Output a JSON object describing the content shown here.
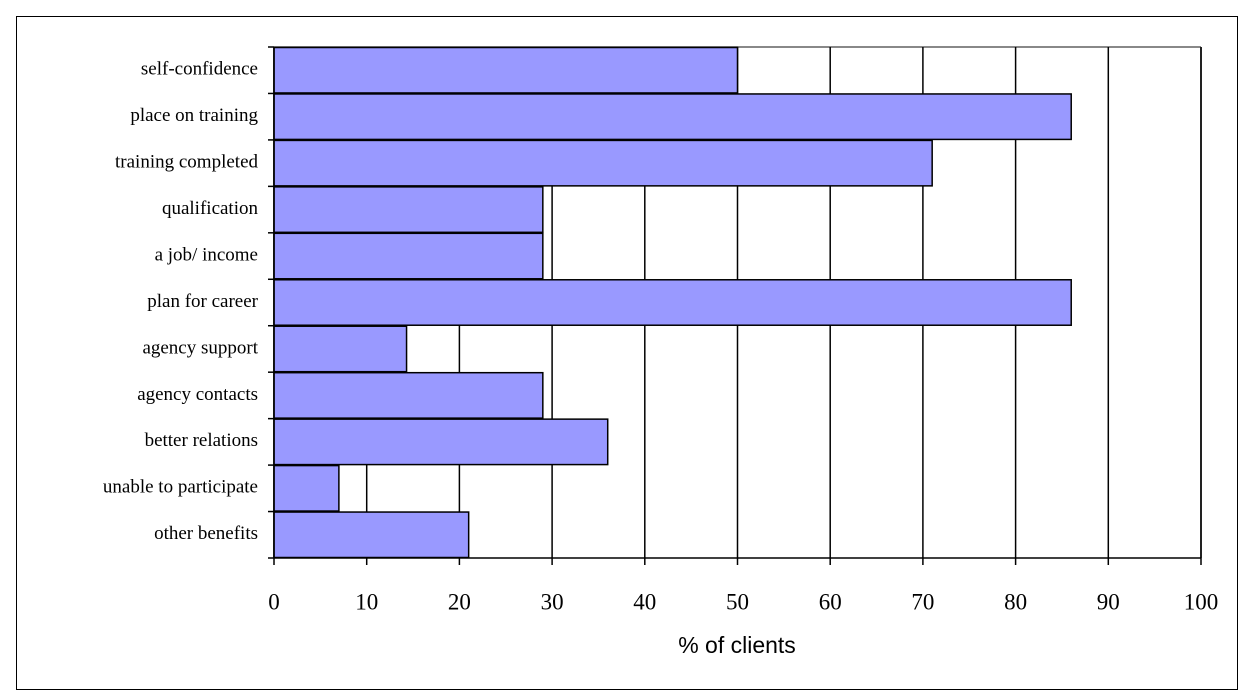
{
  "chart_data": {
    "type": "bar",
    "orientation": "horizontal",
    "x_label": "% of clients",
    "categories": [
      "self-confidence",
      "place on training",
      "training completed",
      "qualification",
      "a job/ income",
      "plan for career",
      "agency support",
      "agency contacts",
      "better relations",
      "unable to participate",
      "other benefits"
    ],
    "values": [
      50,
      86,
      71,
      29,
      29,
      86,
      14.3,
      29,
      36,
      7,
      21
    ],
    "color": "#9999ff",
    "xlim": [
      0,
      100
    ],
    "xticks": [
      0,
      10,
      20,
      30,
      40,
      50,
      60,
      70,
      80,
      90,
      100
    ],
    "grid": true
  }
}
